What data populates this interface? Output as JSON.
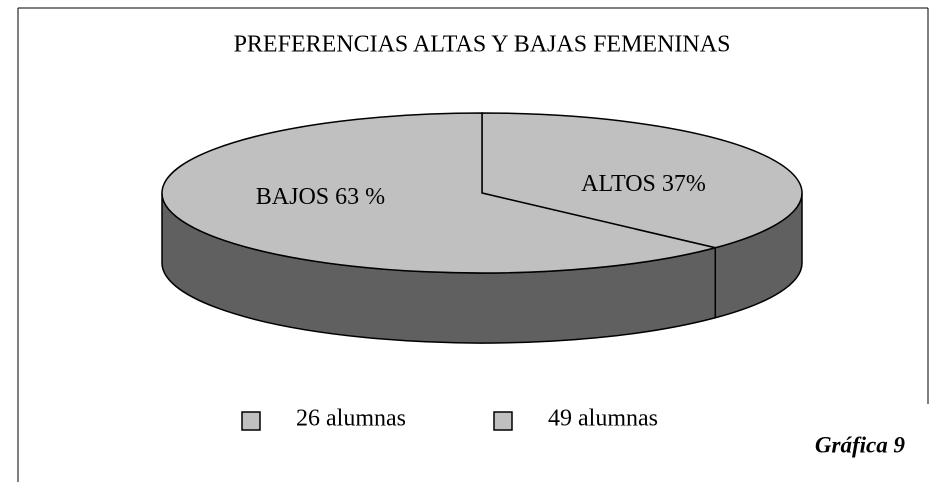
{
  "chart_data": {
    "type": "pie",
    "title": "PREFERENCIAS ALTAS Y BAJAS FEMENINAS",
    "categories": [
      "ALTOS",
      "BAJOS"
    ],
    "values": [
      37,
      63
    ],
    "value_labels": [
      "ALTOS 37%",
      "BAJOS 63 %"
    ],
    "color": "#c0c0c0",
    "side_color": "#606060",
    "legend": [
      "26 alumnas",
      "49 alumnas"
    ],
    "annotation": "Gráfica 9"
  }
}
